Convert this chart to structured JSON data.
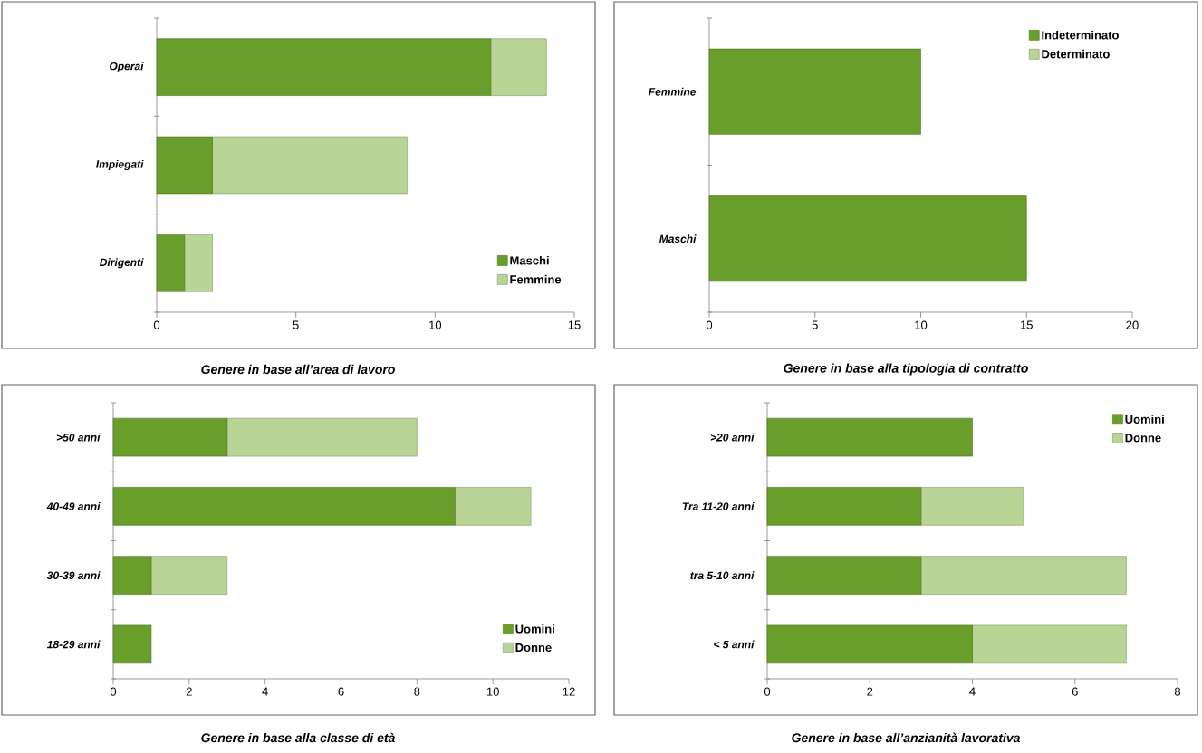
{
  "chart_data": [
    {
      "type": "bar",
      "orientation": "horizontal",
      "stacked": true,
      "title": "Genere in base all’area di lavoro",
      "categories": [
        "Operai",
        "Impiegati",
        "Dirigenti"
      ],
      "series": [
        {
          "name": "Maschi",
          "color": "#6a9e2a",
          "values": [
            12,
            2,
            1
          ]
        },
        {
          "name": "Femmine",
          "color": "#b9d596",
          "values": [
            2,
            7,
            1
          ]
        }
      ],
      "xlim": [
        0,
        15
      ],
      "xticks": [
        0,
        5,
        10,
        15
      ],
      "legend": "bottom right",
      "grid": false
    },
    {
      "type": "bar",
      "orientation": "horizontal",
      "stacked": true,
      "title": "Genere in base alla tipologia di contratto",
      "categories": [
        "Femmine",
        "Maschi"
      ],
      "series": [
        {
          "name": "Indeterminato",
          "color": "#6a9e2a",
          "values": [
            10,
            15
          ]
        },
        {
          "name": "Determinato",
          "color": "#b9d596",
          "values": [
            0,
            0
          ]
        }
      ],
      "xlim": [
        0,
        20
      ],
      "xticks": [
        0,
        5,
        10,
        15,
        20
      ],
      "legend": "top right",
      "grid": false
    },
    {
      "type": "bar",
      "orientation": "horizontal",
      "stacked": true,
      "title": "Genere in base alla classe di età",
      "categories": [
        ">50 anni",
        "40-49 anni",
        "30-39 anni",
        "18-29 anni"
      ],
      "series": [
        {
          "name": "Uomini",
          "color": "#6a9e2a",
          "values": [
            3,
            9,
            1,
            1
          ]
        },
        {
          "name": "Donne",
          "color": "#b9d596",
          "values": [
            5,
            2,
            2,
            0
          ]
        }
      ],
      "xlim": [
        0,
        12
      ],
      "xticks": [
        0,
        2,
        4,
        6,
        8,
        10,
        12
      ],
      "legend": "bottom right",
      "grid": false
    },
    {
      "type": "bar",
      "orientation": "horizontal",
      "stacked": true,
      "title": "Genere in base all’anzianità lavorativa",
      "categories": [
        ">20 anni",
        "Tra 11-20 anni",
        "tra 5-10 anni",
        "< 5 anni"
      ],
      "series": [
        {
          "name": "Uomini",
          "color": "#6a9e2a",
          "values": [
            4,
            3,
            3,
            4
          ]
        },
        {
          "name": "Donne",
          "color": "#b9d596",
          "values": [
            0,
            2,
            4,
            3
          ]
        }
      ],
      "xlim": [
        0,
        8
      ],
      "xticks": [
        0,
        2,
        4,
        6,
        8
      ],
      "legend": "top right",
      "grid": false
    }
  ]
}
